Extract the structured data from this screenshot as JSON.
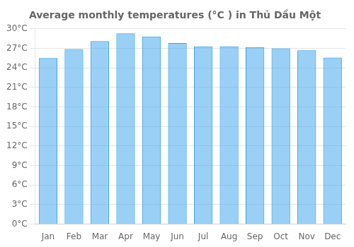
{
  "chart_data": {
    "type": "bar",
    "title": "Average monthly temperatures (°C ) in Thủ Dầu Một",
    "categories": [
      "Jan",
      "Feb",
      "Mar",
      "Apr",
      "May",
      "Jun",
      "Jul",
      "Aug",
      "Sep",
      "Oct",
      "Nov",
      "Dec"
    ],
    "values": [
      25.5,
      26.9,
      28.1,
      29.3,
      28.8,
      27.8,
      27.3,
      27.3,
      27.2,
      27.0,
      26.7,
      25.6
    ],
    "ylim": [
      0,
      30
    ],
    "yticks": [
      {
        "value": 0,
        "label": "0°C"
      },
      {
        "value": 3,
        "label": "3°C"
      },
      {
        "value": 6,
        "label": "6°C"
      },
      {
        "value": 9,
        "label": "9°C"
      },
      {
        "value": 12,
        "label": "12°C"
      },
      {
        "value": 15,
        "label": "15°C"
      },
      {
        "value": 18,
        "label": "18°C"
      },
      {
        "value": 21,
        "label": "21°C"
      },
      {
        "value": 24,
        "label": "24°C"
      },
      {
        "value": 27,
        "label": "27°C"
      },
      {
        "value": 30,
        "label": "30°C"
      }
    ],
    "grid": true
  }
}
